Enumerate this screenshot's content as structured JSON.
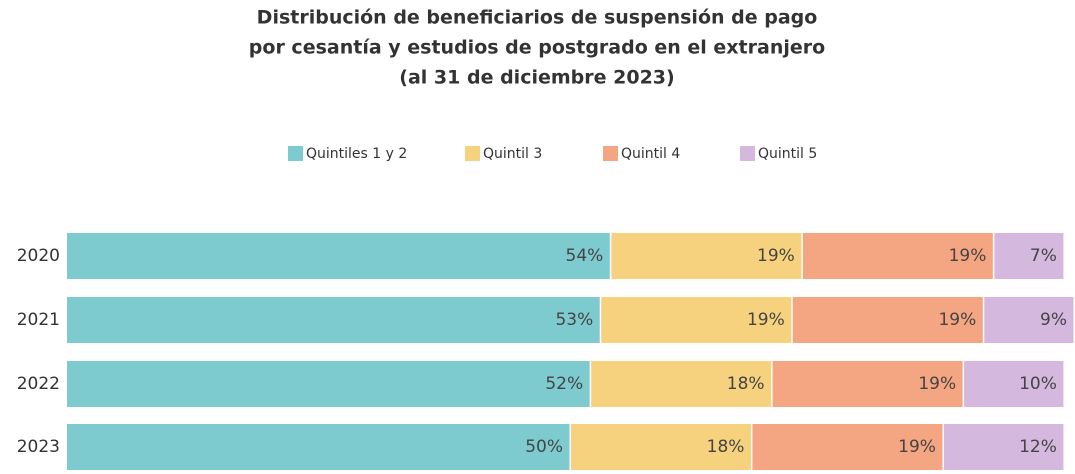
{
  "chart_data": {
    "type": "stacked_barh",
    "title": [
      "Distribución de beneficiarios de suspensión de pago",
      "por cesantía y estudios de postgrado en el extranjero",
      "(al 31 de diciembre 2023)"
    ],
    "categories": [
      "2020",
      "2021",
      "2022",
      "2023"
    ],
    "xlim": [
      0,
      100
    ],
    "series": [
      {
        "name": "Quintiles 1 y 2",
        "color": "#7ecbcf",
        "values": [
          54,
          53,
          52,
          50
        ],
        "value_labels": [
          "54%",
          "53%",
          "52%",
          "50%"
        ]
      },
      {
        "name": "Quintil 3",
        "color": "#f6d27f",
        "values": [
          19,
          19,
          18,
          18
        ],
        "value_labels": [
          "19%",
          "19%",
          "18%",
          "18%"
        ]
      },
      {
        "name": "Quintil 4",
        "color": "#f4a582",
        "values": [
          19,
          19,
          19,
          19
        ],
        "value_labels": [
          "19%",
          "19%",
          "19%",
          "19%"
        ]
      },
      {
        "name": "Quintil 5",
        "color": "#d4b8de",
        "values": [
          7,
          9,
          10,
          12
        ],
        "value_labels": [
          "7%",
          "9%",
          "10%",
          "12%"
        ]
      }
    ],
    "legend": "top"
  }
}
